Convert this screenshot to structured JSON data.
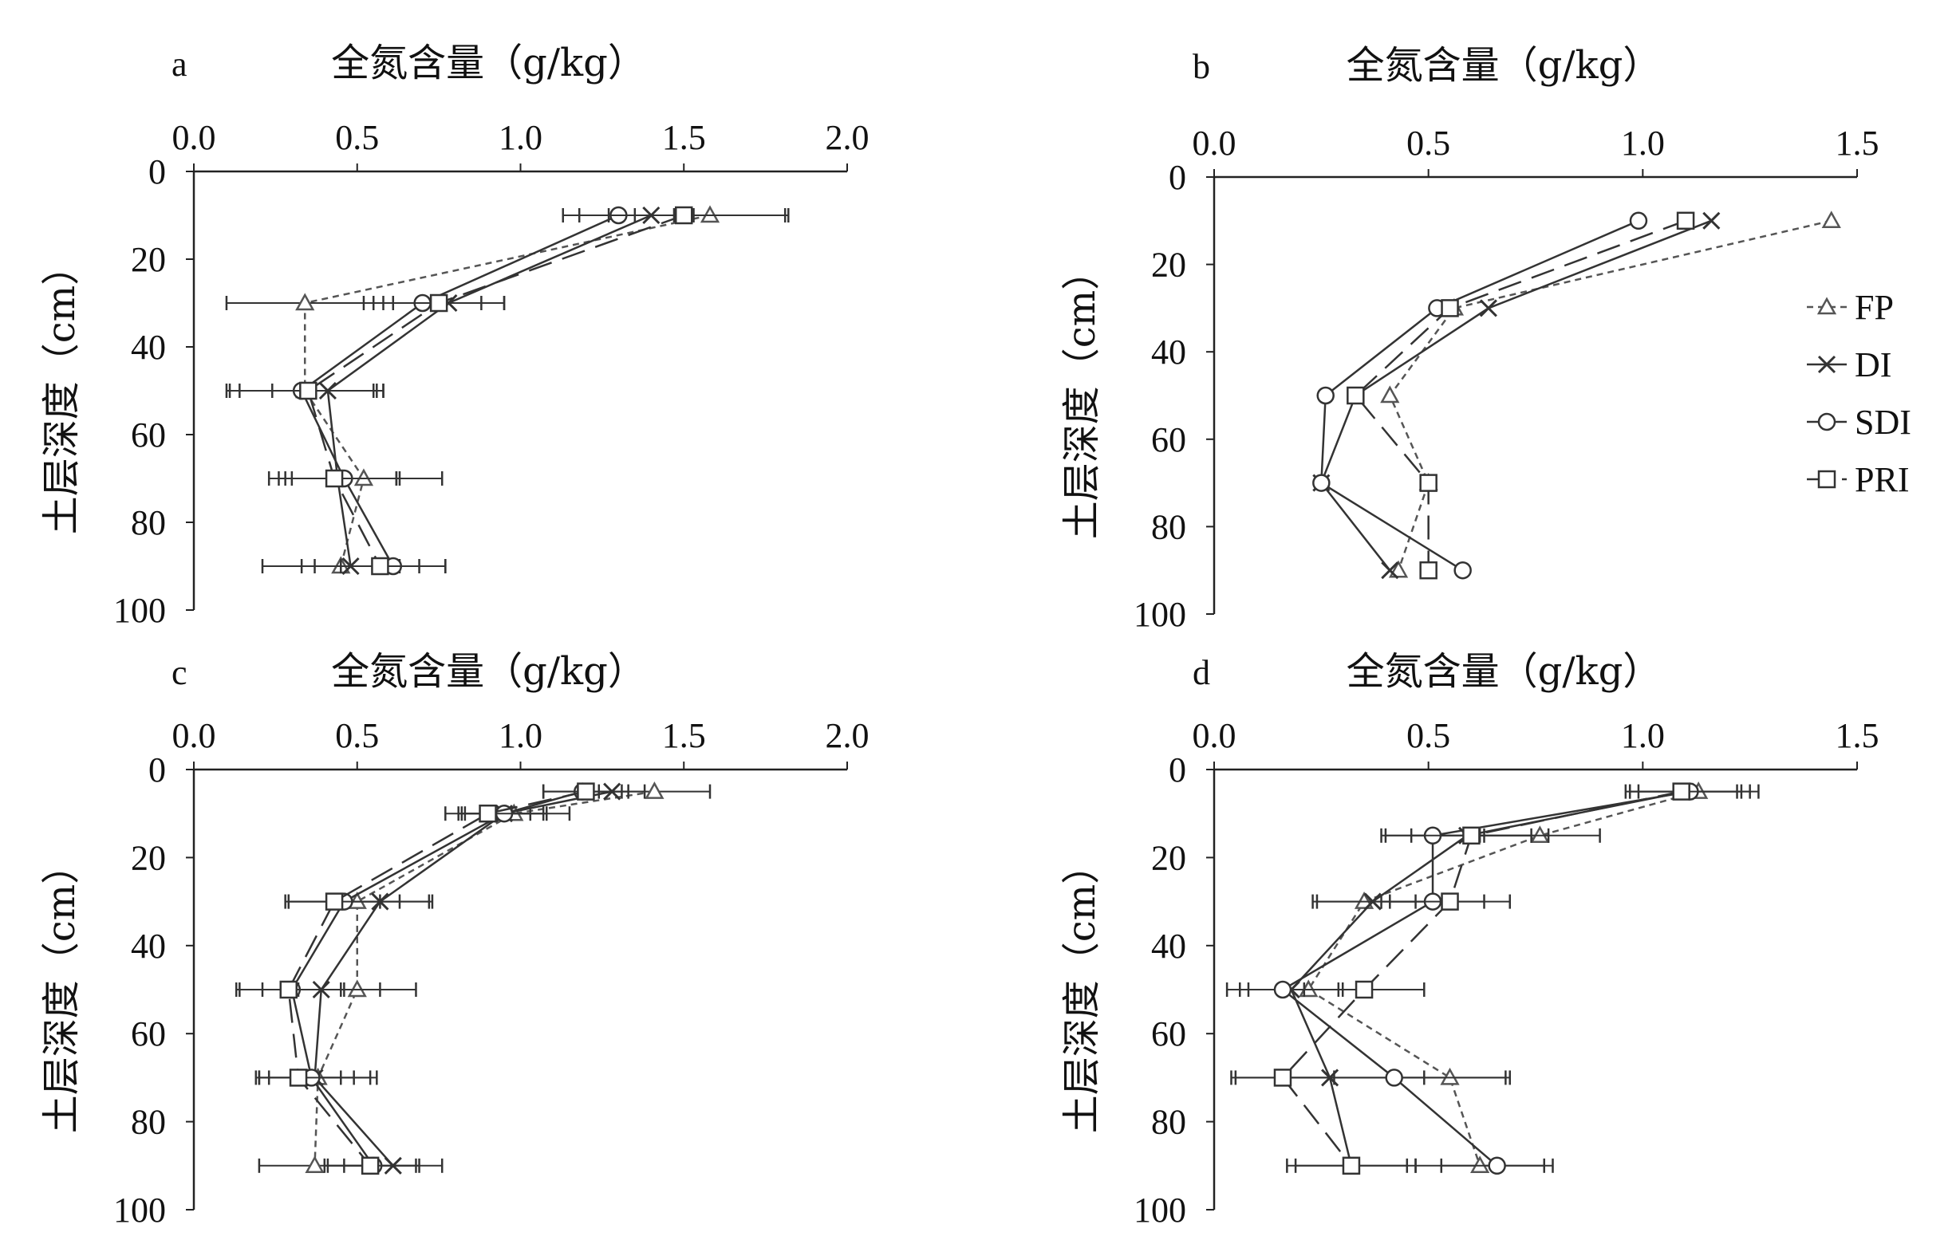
{
  "legend": {
    "position": "right",
    "entries": [
      {
        "name": "FP",
        "marker": "triangle",
        "dash": "8,6",
        "color": "#555555"
      },
      {
        "name": "DI",
        "marker": "x",
        "dash": "",
        "color": "#333333"
      },
      {
        "name": "SDI",
        "marker": "circle",
        "dash": "",
        "color": "#333333"
      },
      {
        "name": "PRI",
        "marker": "square",
        "dash": "30,14",
        "color": "#333333"
      }
    ]
  },
  "chart_data": [
    {
      "panel": "a",
      "type": "line",
      "orientation": "vertical-profile",
      "xlabel": "全氮含量（g/kg）",
      "ylabel": "土层深度（cm）",
      "xlim": [
        0,
        2.0
      ],
      "ylim": [
        0,
        100
      ],
      "y_inverted": true,
      "x_axis_position": "top",
      "xticks": [
        "0.0",
        "0.5",
        "1.0",
        "1.5",
        "2.0"
      ],
      "yticks": [
        "0",
        "20",
        "40",
        "60",
        "80",
        "100"
      ],
      "grid": false,
      "series": [
        {
          "name": "FP",
          "points": [
            [
              1.58,
              10
            ],
            [
              0.34,
              30
            ],
            [
              0.34,
              50
            ],
            [
              0.52,
              70
            ],
            [
              0.45,
              90
            ]
          ],
          "err": [
            0.23,
            0.24,
            0.24,
            0.24,
            0.24
          ]
        },
        {
          "name": "DI",
          "points": [
            [
              1.4,
              10
            ],
            [
              0.78,
              30
            ],
            [
              0.41,
              50
            ],
            [
              0.44,
              70
            ],
            [
              0.48,
              90
            ]
          ],
          "err": [
            0.13,
            0.17,
            0.17,
            0.18,
            0.15
          ]
        },
        {
          "name": "SDI",
          "points": [
            [
              1.3,
              10
            ],
            [
              0.7,
              30
            ],
            [
              0.33,
              50
            ],
            [
              0.46,
              70
            ],
            [
              0.61,
              90
            ]
          ],
          "err": [
            0.17,
            0.18,
            0.22,
            0.16,
            0.16
          ]
        },
        {
          "name": "PRI",
          "points": [
            [
              1.5,
              10
            ],
            [
              0.75,
              30
            ],
            [
              0.35,
              50
            ],
            [
              0.43,
              70
            ],
            [
              0.57,
              90
            ]
          ],
          "err": [
            0.32,
            0.2,
            0.21,
            0.2,
            0.2
          ]
        }
      ]
    },
    {
      "panel": "b",
      "type": "line",
      "orientation": "vertical-profile",
      "xlabel": "全氮含量（g/kg）",
      "ylabel": "土层深度（cm）",
      "xlim": [
        0,
        1.5
      ],
      "ylim": [
        0,
        100
      ],
      "y_inverted": true,
      "x_axis_position": "top",
      "xticks": [
        "0.0",
        "0.5",
        "1.0",
        "1.5"
      ],
      "yticks": [
        "0",
        "20",
        "40",
        "60",
        "80",
        "100"
      ],
      "grid": false,
      "series": [
        {
          "name": "FP",
          "points": [
            [
              1.44,
              10
            ],
            [
              0.56,
              30
            ],
            [
              0.41,
              50
            ],
            [
              0.5,
              70
            ],
            [
              0.43,
              90
            ]
          ],
          "err": []
        },
        {
          "name": "DI",
          "points": [
            [
              1.16,
              10
            ],
            [
              0.64,
              30
            ],
            [
              0.33,
              50
            ],
            [
              0.25,
              70
            ],
            [
              0.41,
              90
            ]
          ],
          "err": []
        },
        {
          "name": "SDI",
          "points": [
            [
              0.99,
              10
            ],
            [
              0.52,
              30
            ],
            [
              0.26,
              50
            ],
            [
              0.25,
              70
            ],
            [
              0.58,
              90
            ]
          ],
          "err": []
        },
        {
          "name": "PRI",
          "points": [
            [
              1.1,
              10
            ],
            [
              0.55,
              30
            ],
            [
              0.33,
              50
            ],
            [
              0.5,
              70
            ],
            [
              0.5,
              90
            ]
          ],
          "err": []
        }
      ]
    },
    {
      "panel": "c",
      "type": "line",
      "orientation": "vertical-profile",
      "xlabel": "全氮含量（g/kg）",
      "ylabel": "土层深度（cm）",
      "xlim": [
        0,
        2.0
      ],
      "ylim": [
        0,
        100
      ],
      "y_inverted": true,
      "x_axis_position": "top",
      "xticks": [
        "0.0",
        "0.5",
        "1.0",
        "1.5",
        "2.0"
      ],
      "yticks": [
        "0",
        "20",
        "40",
        "60",
        "80",
        "100"
      ],
      "grid": false,
      "series": [
        {
          "name": "FP",
          "points": [
            [
              1.41,
              5
            ],
            [
              0.98,
              10
            ],
            [
              0.5,
              30
            ],
            [
              0.5,
              50
            ],
            [
              0.38,
              70
            ],
            [
              0.37,
              90
            ]
          ],
          "err": [
            0.17,
            0.17,
            0.22,
            0.18,
            0.18,
            0.17
          ]
        },
        {
          "name": "DI",
          "points": [
            [
              1.28,
              5
            ],
            [
              0.95,
              10
            ],
            [
              0.57,
              30
            ],
            [
              0.39,
              50
            ],
            [
              0.37,
              70
            ],
            [
              0.61,
              90
            ]
          ],
          "err": [
            0.1,
            0.12,
            0.16,
            0.18,
            0.17,
            0.15
          ]
        },
        {
          "name": "SDI",
          "points": [
            [
              1.19,
              5
            ],
            [
              0.95,
              10
            ],
            [
              0.46,
              30
            ],
            [
              0.3,
              50
            ],
            [
              0.36,
              70
            ],
            [
              0.55,
              90
            ]
          ],
          "err": [
            0.12,
            0.13,
            0.17,
            0.16,
            0.13,
            0.14
          ]
        },
        {
          "name": "PRI",
          "points": [
            [
              1.2,
              5
            ],
            [
              0.9,
              10
            ],
            [
              0.43,
              30
            ],
            [
              0.29,
              50
            ],
            [
              0.32,
              70
            ],
            [
              0.54,
              90
            ]
          ],
          "err": [
            0.13,
            0.13,
            0.14,
            0.16,
            0.13,
            0.14
          ]
        }
      ]
    },
    {
      "panel": "d",
      "type": "line",
      "orientation": "vertical-profile",
      "xlabel": "全氮含量（g/kg）",
      "ylabel": "土层深度（cm）",
      "xlim": [
        0,
        1.5
      ],
      "ylim": [
        0,
        100
      ],
      "y_inverted": true,
      "x_axis_position": "top",
      "xticks": [
        "0.0",
        "0.5",
        "1.0",
        "1.5"
      ],
      "yticks": [
        "0",
        "20",
        "40",
        "60",
        "80",
        "100"
      ],
      "grid": false,
      "series": [
        {
          "name": "FP",
          "points": [
            [
              1.13,
              5
            ],
            [
              0.76,
              15
            ],
            [
              0.35,
              30
            ],
            [
              0.22,
              50
            ],
            [
              0.55,
              70
            ],
            [
              0.62,
              90
            ]
          ],
          "err": [
            0.14,
            0.14,
            0.12,
            0.14,
            0.14,
            0.15
          ]
        },
        {
          "name": "DI",
          "points": [
            [
              1.1,
              5
            ],
            [
              0.59,
              15
            ],
            [
              0.37,
              30
            ],
            [
              0.18,
              50
            ],
            [
              0.27,
              70
            ],
            [
              0.32,
              90
            ]
          ],
          "err": [
            0.13,
            0.19,
            0.13,
            0.12,
            0.22,
            0.15
          ]
        },
        {
          "name": "SDI",
          "points": [
            [
              1.11,
              5
            ],
            [
              0.51,
              15
            ],
            [
              0.51,
              30
            ],
            [
              0.16,
              50
            ],
            [
              0.42,
              70
            ],
            [
              0.66,
              90
            ]
          ],
          "err": [
            0.14,
            0.12,
            0.12,
            0.13,
            0.26,
            0.13
          ]
        },
        {
          "name": "PRI",
          "points": [
            [
              1.09,
              5
            ],
            [
              0.6,
              15
            ],
            [
              0.55,
              30
            ],
            [
              0.35,
              50
            ],
            [
              0.16,
              70
            ],
            [
              0.32,
              90
            ]
          ],
          "err": [
            0.13,
            0.14,
            0.14,
            0.14,
            0.12,
            0.13
          ]
        }
      ]
    }
  ]
}
